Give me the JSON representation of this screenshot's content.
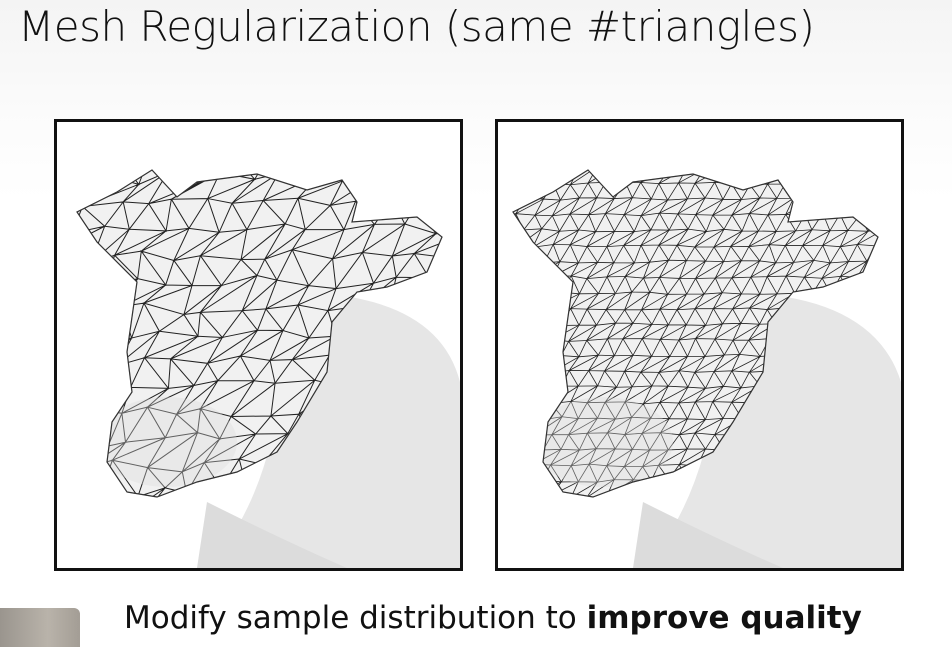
{
  "slide": {
    "title": "Mesh Regularization (same #triangles)",
    "caption_prefix": "Modify sample distribution to ",
    "caption_bold": "improve quality"
  },
  "figures": [
    {
      "id": "original-mesh",
      "mesh_style": "irregular",
      "outline_color": "#111111"
    },
    {
      "id": "regularized-mesh",
      "mesh_style": "regular",
      "outline_color": "#111111"
    }
  ],
  "colors": {
    "mesh_fill": "#f1f1f1",
    "mesh_shade": "#d9d9d9",
    "edge": "#222222"
  }
}
